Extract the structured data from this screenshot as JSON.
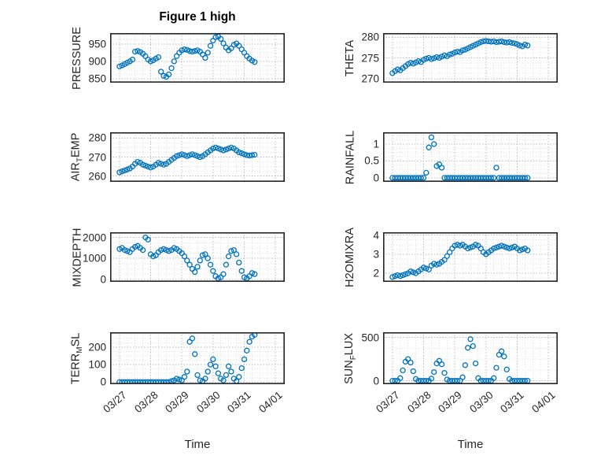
{
  "figure": {
    "title": "Figure 1 high",
    "xlabel": "Time",
    "marker_color": "#0072BD",
    "axis_color": "#262626",
    "grid_color": "#bdbdbd",
    "minor_grid_color": "#dedede",
    "background": "#ffffff"
  },
  "x_axis": {
    "lim": [
      -0.3,
      5.3
    ],
    "tick_values": [
      0,
      1,
      2,
      3,
      4,
      5
    ],
    "tick_labels": [
      "03/27",
      "03/28",
      "03/29",
      "03/30",
      "03/31",
      "04/01"
    ],
    "minor_step": 0.25,
    "unit": "days since 03/27"
  },
  "x_days": [
    0,
    0.083,
    0.167,
    0.25,
    0.333,
    0.417,
    0.5,
    0.583,
    0.667,
    0.75,
    0.833,
    0.917,
    1,
    1.083,
    1.167,
    1.25,
    1.333,
    1.417,
    1.5,
    1.583,
    1.667,
    1.75,
    1.833,
    1.917,
    2,
    2.083,
    2.167,
    2.25,
    2.333,
    2.417,
    2.5,
    2.583,
    2.667,
    2.75,
    2.833,
    2.917,
    3,
    3.083,
    3.167,
    3.25,
    3.333,
    3.417,
    3.5,
    3.583,
    3.667,
    3.75,
    3.833,
    3.917,
    4,
    4.083,
    4.167,
    4.25,
    4.333
  ],
  "chart_data": [
    {
      "type": "scatter",
      "name": "PRESSURE",
      "x_key": "x_days",
      "ylabel_pre": "PRESSURE",
      "ylabel_sub": "",
      "ylabel_post": "",
      "ylim": [
        838,
        982
      ],
      "yticks": [
        850,
        900,
        950
      ],
      "ytick_labels": [
        "850",
        "900",
        "950"
      ],
      "values": [
        885,
        888,
        892,
        896,
        900,
        905,
        928,
        930,
        927,
        922,
        915,
        905,
        900,
        903,
        908,
        912,
        870,
        858,
        855,
        862,
        880,
        900,
        915,
        925,
        932,
        935,
        933,
        930,
        928,
        930,
        932,
        928,
        920,
        910,
        925,
        945,
        960,
        970,
        972,
        965,
        952,
        940,
        932,
        938,
        948,
        952,
        945,
        935,
        925,
        915,
        908,
        902,
        898
      ]
    },
    {
      "type": "scatter",
      "name": "THETA",
      "x_key": "x_days",
      "ylabel_pre": "THETA",
      "ylabel_sub": "",
      "ylabel_post": "",
      "ylim": [
        269,
        281
      ],
      "yticks": [
        270,
        275,
        280
      ],
      "ytick_labels": [
        "270",
        "275",
        "280"
      ],
      "values": [
        271.3,
        271.8,
        272.2,
        272,
        272.5,
        273,
        273.5,
        273.8,
        273.6,
        273.9,
        274.2,
        274,
        274.5,
        274.8,
        275,
        274.7,
        274.9,
        275.2,
        275,
        275.3,
        275.6,
        275.4,
        275.8,
        276,
        276.3,
        276.5,
        276.4,
        276.8,
        277,
        277.3,
        277.6,
        277.9,
        278.2,
        278.5,
        278.8,
        279,
        279.1,
        279,
        278.9,
        279,
        278.8,
        278.9,
        279,
        278.8,
        278.7,
        278.8,
        278.6,
        278.5,
        278.3,
        278,
        277.8,
        278.2,
        278
      ]
    },
    {
      "type": "scatter",
      "name": "AIR_TEMP",
      "x_key": "x_days",
      "ylabel_pre": "AIR",
      "ylabel_sub": "T",
      "ylabel_post": "EMP",
      "ylim": [
        257,
        283
      ],
      "yticks": [
        260,
        270,
        280
      ],
      "ytick_labels": [
        "260",
        "270",
        "280"
      ],
      "values": [
        262,
        262.5,
        263,
        263.5,
        264,
        265,
        266.5,
        267.5,
        267,
        266,
        265.5,
        265,
        264.5,
        265,
        266,
        267,
        266.5,
        266,
        266.5,
        267.5,
        268.5,
        269.5,
        270.5,
        271,
        271.5,
        271,
        270.5,
        271,
        271.5,
        271,
        270.5,
        270,
        270.5,
        271.5,
        272.5,
        273.5,
        274.5,
        275,
        274.5,
        274,
        273.5,
        274,
        274.5,
        275,
        274.5,
        273.5,
        272.5,
        272,
        271.5,
        271,
        270.8,
        271,
        271.2
      ]
    },
    {
      "type": "scatter",
      "name": "RAINFALL",
      "x_key": "x_days",
      "ylabel_pre": "RAINFALL",
      "ylabel_sub": "",
      "ylabel_post": "",
      "ylim": [
        -0.12,
        1.35
      ],
      "yticks": [
        0,
        0.5,
        1
      ],
      "ytick_labels": [
        "0",
        "0.5",
        "1"
      ],
      "values": [
        0,
        0,
        0,
        0,
        0,
        0,
        0,
        0,
        0,
        0,
        0,
        0,
        0,
        0.15,
        0.9,
        1.2,
        1,
        0.35,
        0.4,
        0.3,
        0,
        0,
        0,
        0,
        0,
        0,
        0,
        0,
        0,
        0,
        0,
        0,
        0,
        0,
        0,
        0,
        0,
        0,
        0,
        0,
        0.3,
        0,
        0,
        0,
        0,
        0,
        0,
        0,
        0,
        0,
        0,
        0,
        0
      ]
    },
    {
      "type": "scatter",
      "name": "MIXDEPTH",
      "x_key": "x_days",
      "ylabel_pre": "MIXDEPTH",
      "ylabel_sub": "",
      "ylabel_post": "",
      "ylim": [
        -120,
        2250
      ],
      "yticks": [
        0,
        1000,
        2000
      ],
      "ytick_labels": [
        "0",
        "1000",
        "2000"
      ],
      "values": [
        1450,
        1500,
        1400,
        1350,
        1300,
        1450,
        1550,
        1600,
        1500,
        1400,
        2000,
        1900,
        1200,
        1100,
        1150,
        1300,
        1400,
        1450,
        1400,
        1350,
        1400,
        1500,
        1450,
        1350,
        1250,
        1100,
        900,
        700,
        500,
        350,
        600,
        900,
        1150,
        1200,
        1000,
        700,
        400,
        150,
        50,
        100,
        250,
        700,
        1100,
        1350,
        1400,
        1200,
        800,
        400,
        100,
        50,
        150,
        300,
        250
      ]
    },
    {
      "type": "scatter",
      "name": "H2OMIXRA",
      "x_key": "x_days",
      "ylabel_pre": "H2OMIXRA",
      "ylabel_sub": "",
      "ylabel_post": "",
      "ylim": [
        1.55,
        4.15
      ],
      "yticks": [
        2,
        3,
        4
      ],
      "ytick_labels": [
        "2",
        "3",
        "4"
      ],
      "values": [
        1.8,
        1.85,
        1.9,
        1.85,
        1.9,
        1.95,
        2,
        2.1,
        2.05,
        2,
        2.1,
        2.2,
        2.3,
        2.25,
        2.2,
        2.4,
        2.5,
        2.45,
        2.5,
        2.6,
        2.7,
        2.9,
        3.1,
        3.3,
        3.45,
        3.5,
        3.45,
        3.5,
        3.4,
        3.3,
        3.35,
        3.4,
        3.5,
        3.45,
        3.3,
        3.1,
        3,
        3.1,
        3.2,
        3.3,
        3.35,
        3.4,
        3.45,
        3.4,
        3.35,
        3.3,
        3.35,
        3.4,
        3.3,
        3.2,
        3.25,
        3.3,
        3.2
      ]
    },
    {
      "type": "scatter",
      "name": "TERR_MSL",
      "x_key": "x_days",
      "ylabel_pre": "TERR",
      "ylabel_sub": "M",
      "ylabel_post": "SL",
      "ylim": [
        -12,
        285
      ],
      "yticks": [
        0,
        100,
        200
      ],
      "ytick_labels": [
        "0",
        "100",
        "200"
      ],
      "values": [
        0,
        0,
        0,
        0,
        0,
        0,
        0,
        0,
        0,
        0,
        0,
        0,
        0,
        0,
        0,
        0,
        0,
        0,
        0,
        0,
        5,
        10,
        20,
        15,
        10,
        30,
        60,
        230,
        250,
        160,
        40,
        10,
        5,
        20,
        60,
        100,
        130,
        90,
        50,
        20,
        10,
        40,
        90,
        60,
        20,
        5,
        30,
        80,
        130,
        180,
        230,
        260,
        270
      ]
    },
    {
      "type": "scatter",
      "name": "SUN_FLUX",
      "x_key": "x_days",
      "ylabel_pre": "SUN",
      "ylabel_sub": "F",
      "ylabel_post": "LUX",
      "ylim": [
        -40,
        560
      ],
      "yticks": [
        0,
        500
      ],
      "ytick_labels": [
        "0",
        "500"
      ],
      "values": [
        0,
        0,
        0,
        30,
        120,
        220,
        250,
        210,
        110,
        20,
        0,
        0,
        0,
        0,
        0,
        25,
        100,
        200,
        230,
        190,
        90,
        15,
        0,
        0,
        0,
        0,
        0,
        40,
        180,
        380,
        480,
        400,
        200,
        30,
        0,
        0,
        0,
        0,
        0,
        30,
        150,
        300,
        340,
        280,
        130,
        20,
        0,
        0,
        0,
        0,
        0,
        0,
        0
      ]
    }
  ]
}
